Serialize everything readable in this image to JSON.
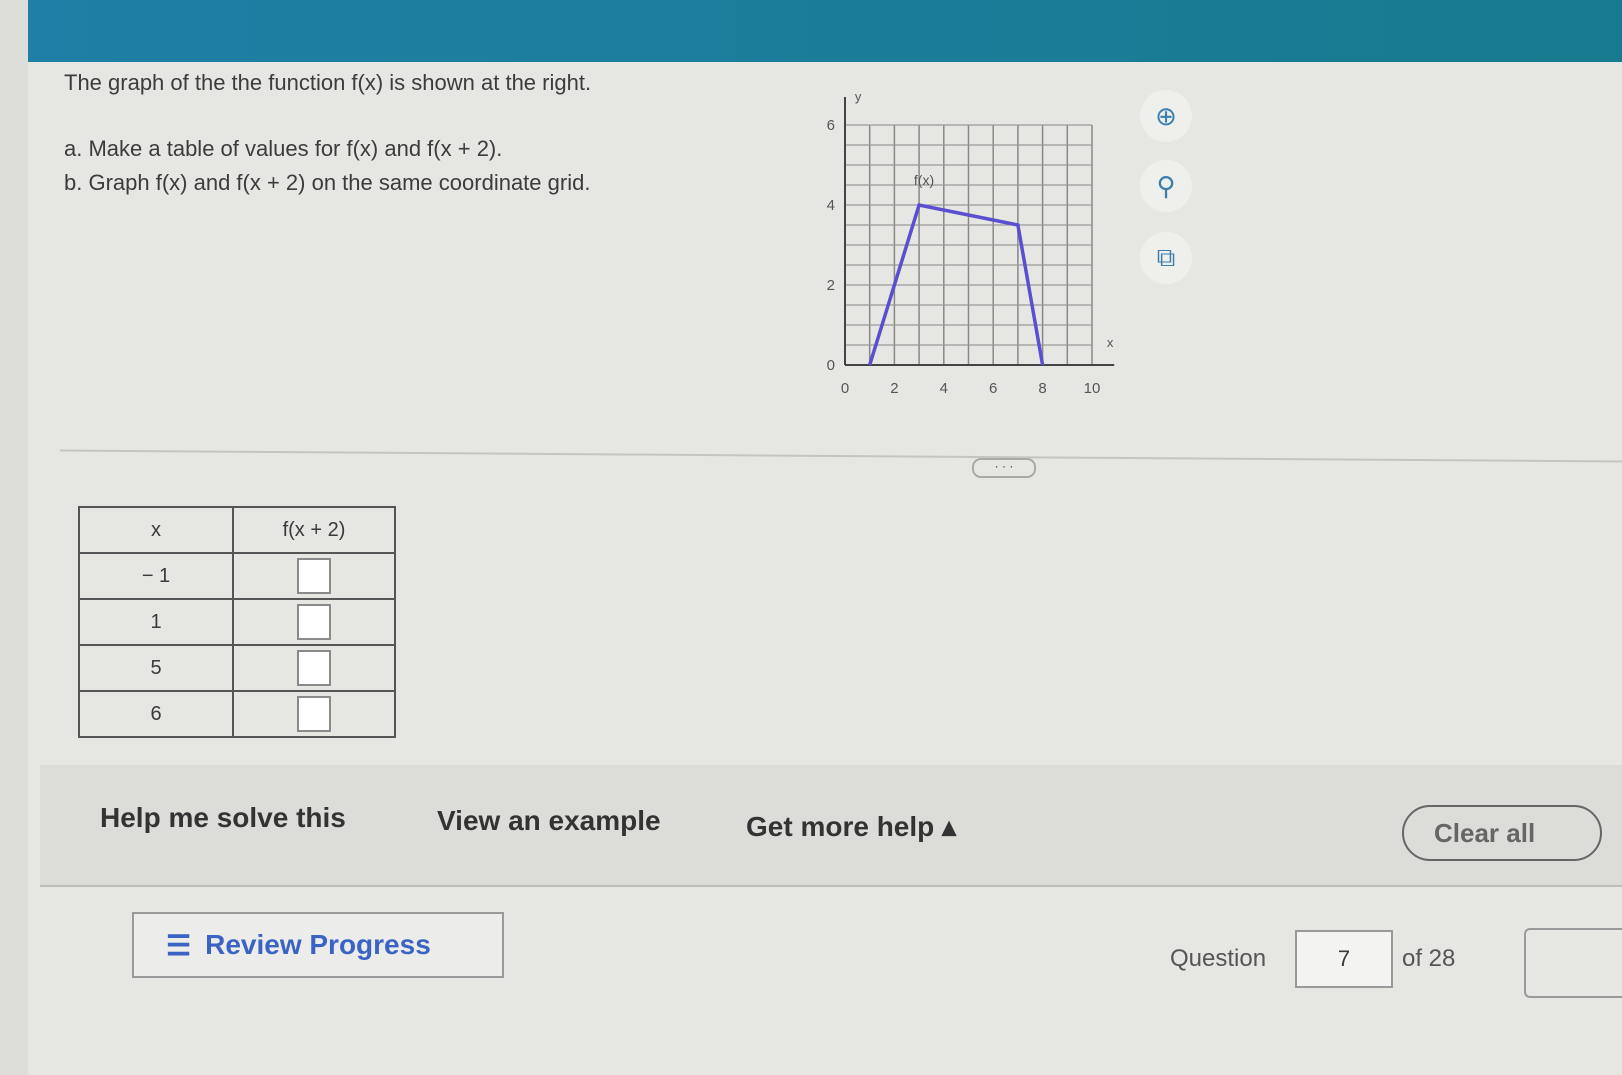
{
  "question": {
    "intro": "The graph of the the function f(x) is shown at the right.",
    "part_a": "a. Make a table of values for f(x) and f(x + 2).",
    "part_b": "b. Graph f(x) and f(x + 2) on the same coordinate grid."
  },
  "chart_data": {
    "type": "line",
    "xlabel": "x",
    "ylabel": "y",
    "xlim": [
      0,
      10
    ],
    "ylim": [
      0,
      6
    ],
    "xticks": [
      "0",
      "2",
      "4",
      "6",
      "8",
      "10"
    ],
    "yticks": [
      "0",
      "2",
      "4",
      "6"
    ],
    "grid": true,
    "series": [
      {
        "name": "f(x)",
        "x": [
          1,
          3,
          7,
          8
        ],
        "y": [
          0,
          4,
          3.5,
          0
        ],
        "color": "#5a4fd0"
      }
    ]
  },
  "tools": [
    "zoom-in-icon",
    "zoom-out-icon",
    "popout-icon"
  ],
  "table": {
    "headers": [
      "x",
      "f(x + 2)"
    ],
    "rows": [
      {
        "x": "− 1",
        "value": ""
      },
      {
        "x": "1",
        "value": ""
      },
      {
        "x": "5",
        "value": ""
      },
      {
        "x": "6",
        "value": ""
      }
    ]
  },
  "divider_label": "· · ·",
  "help": {
    "solve": "Help me solve this",
    "example": "View an example",
    "more": "Get more help ▴",
    "clear": "Clear all"
  },
  "footer": {
    "review": "Review Progress",
    "question_label": "Question",
    "question_number": "7",
    "of_total": "of 28"
  }
}
